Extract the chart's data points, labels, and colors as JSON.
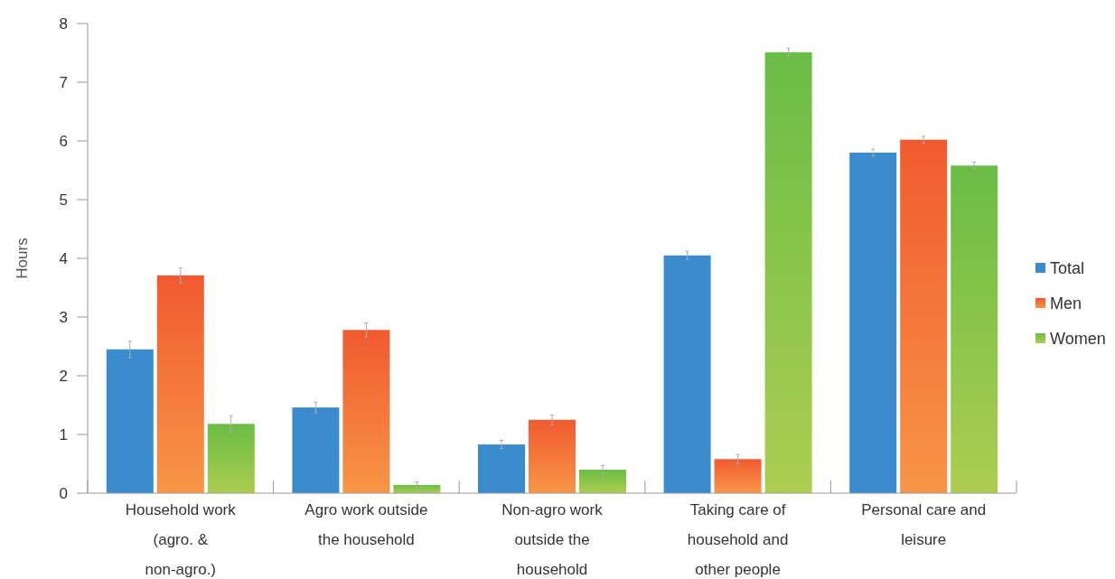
{
  "chart_data": {
    "type": "bar",
    "ylabel": "Hours",
    "categories": [
      "Household work (agro. & non-agro.)",
      "Agro work outside the household",
      "Non-agro work outside the household",
      "Taking care of household and other people",
      "Personal care and leisure"
    ],
    "series": [
      {
        "name": "Total",
        "color": "#3a8ccf",
        "values": [
          2.45,
          1.46,
          0.83,
          4.05,
          5.8
        ],
        "errors": [
          0.14,
          0.09,
          0.07,
          0.07,
          0.06
        ]
      },
      {
        "name": "Men",
        "color": "#f15a30",
        "values": [
          3.71,
          2.78,
          1.25,
          0.58,
          6.02
        ],
        "errors": [
          0.13,
          0.12,
          0.08,
          0.08,
          0.06
        ]
      },
      {
        "name": "Women",
        "color": "#6abd45",
        "values": [
          1.18,
          0.14,
          0.4,
          7.51,
          5.58
        ],
        "errors": [
          0.14,
          0.05,
          0.07,
          0.07,
          0.06
        ]
      }
    ],
    "ylim": [
      0,
      8
    ],
    "yticks": [
      0,
      1,
      2,
      3,
      4,
      5,
      6,
      7,
      8
    ],
    "grid": false,
    "legend": "right"
  }
}
